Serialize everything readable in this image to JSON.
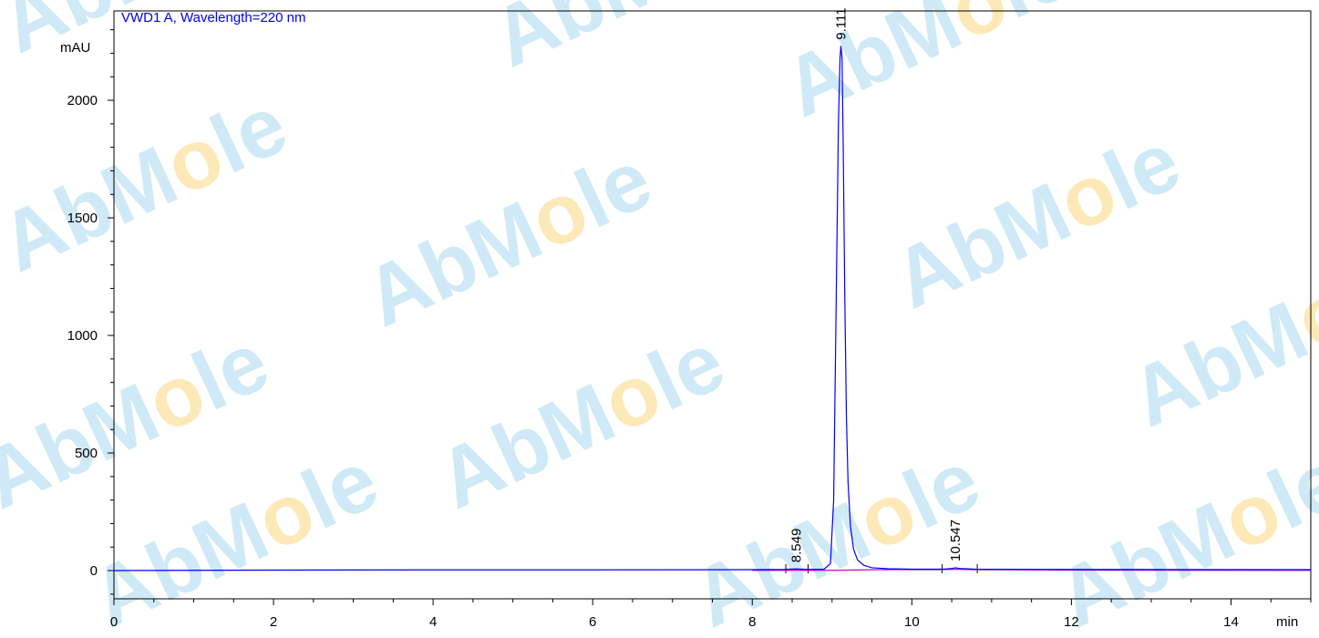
{
  "chart_data": {
    "type": "line",
    "title": "VWD1 A, Wavelength=220 nm",
    "xlabel": "min",
    "ylabel": "mAU",
    "xlim": [
      0,
      15
    ],
    "ylim": [
      -120,
      2380
    ],
    "x_ticks": [
      0,
      2,
      4,
      6,
      8,
      10,
      12,
      14
    ],
    "x_tick_labels": [
      "0",
      "2",
      "4",
      "6",
      "8",
      "10",
      "12",
      "14"
    ],
    "y_ticks": [
      0,
      500,
      1000,
      1500,
      2000
    ],
    "y_tick_labels": [
      "0",
      "500",
      "1000",
      "1500",
      "2000"
    ],
    "grid": false,
    "series": [
      {
        "color": "#0000ff",
        "x": [
          0,
          2,
          3.8,
          6,
          8,
          8.4,
          8.549,
          8.7,
          8.9,
          8.98,
          9.02,
          9.05,
          9.08,
          9.1,
          9.111,
          9.125,
          9.14,
          9.16,
          9.18,
          9.2,
          9.23,
          9.27,
          9.32,
          9.4,
          9.5,
          9.7,
          10,
          10.4,
          10.5,
          10.547,
          10.6,
          10.8,
          12,
          14,
          15
        ],
        "y": [
          0,
          2,
          3,
          3,
          4,
          5,
          7,
          5,
          6,
          30,
          300,
          1100,
          1900,
          2180,
          2230,
          2180,
          1800,
          1150,
          650,
          380,
          190,
          90,
          45,
          22,
          12,
          8,
          6,
          6,
          9,
          12,
          9,
          6,
          5,
          4,
          4
        ]
      },
      {
        "color": "#cc00cc",
        "x": [
          8.0,
          8.45,
          8.549,
          8.65,
          9.0,
          9.6,
          10.35,
          10.547,
          10.75,
          12,
          15
        ],
        "y": [
          1,
          1,
          2,
          1,
          1,
          4,
          4,
          6,
          4,
          2,
          1
        ]
      }
    ],
    "peaks": [
      {
        "rt": 8.549,
        "label": "8.549",
        "height": 7
      },
      {
        "rt": 9.111,
        "label": "9.111",
        "height": 2230
      },
      {
        "rt": 10.547,
        "label": "10.547",
        "height": 12
      }
    ],
    "integration_markers": [
      8.42,
      8.7,
      10.38,
      10.82
    ],
    "watermark": {
      "text": "AbMole",
      "color_text": "#cfeaf6",
      "color_o": "#fde9b8"
    }
  }
}
